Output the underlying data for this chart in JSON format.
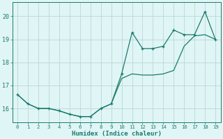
{
  "xlabel": "Humidex (Indice chaleur)",
  "x": [
    0,
    1,
    2,
    3,
    4,
    5,
    6,
    7,
    8,
    9,
    10,
    11,
    12,
    13,
    14,
    15,
    16,
    17,
    18,
    19
  ],
  "y_jagged": [
    16.6,
    16.2,
    16.0,
    16.0,
    15.9,
    15.75,
    15.65,
    15.65,
    16.0,
    16.2,
    17.5,
    19.3,
    18.6,
    18.6,
    18.7,
    19.4,
    19.2,
    19.2,
    20.2,
    19.0
  ],
  "y_smooth": [
    16.6,
    16.2,
    16.0,
    16.0,
    15.9,
    15.75,
    15.65,
    15.65,
    16.0,
    16.2,
    17.3,
    17.5,
    17.45,
    17.45,
    17.5,
    17.65,
    18.7,
    19.15,
    19.2,
    19.0
  ],
  "line_color": "#1a7a6e",
  "bg_color": "#e0f5f5",
  "grid_color": "#b8d8d8",
  "tick_color": "#1a7a6e",
  "ylim": [
    15.4,
    20.6
  ],
  "yticks": [
    16,
    17,
    18,
    19,
    20
  ],
  "xlim": [
    -0.5,
    19.5
  ]
}
